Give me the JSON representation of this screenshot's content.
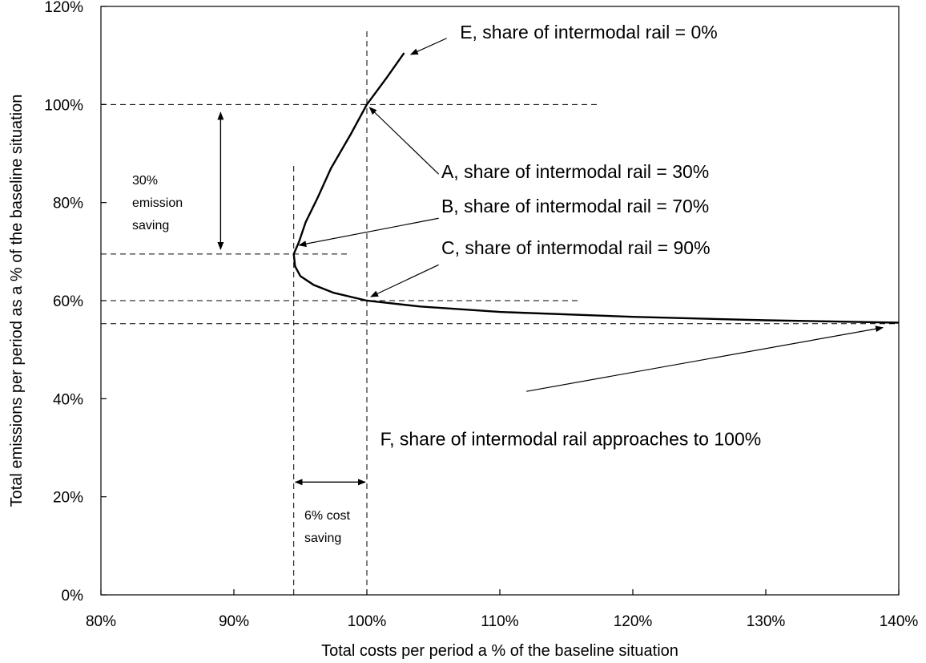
{
  "chart_data": {
    "type": "line",
    "xlabel": "Total costs per period a % of the baseline situation",
    "ylabel": "Total emissions per period as a % of the baseline situation",
    "xlim": [
      80,
      140
    ],
    "ylim": [
      0,
      120
    ],
    "x_ticks": [
      80,
      90,
      100,
      110,
      120,
      130,
      140
    ],
    "x_tick_labels": [
      "80%",
      "90%",
      "100%",
      "110%",
      "120%",
      "130%",
      "140%"
    ],
    "y_ticks": [
      0,
      20,
      40,
      60,
      80,
      100,
      120
    ],
    "y_tick_labels": [
      "0%",
      "20%",
      "40%",
      "60%",
      "80%",
      "100%",
      "120%"
    ],
    "grid": false,
    "series": [
      {
        "x": [
          102.8,
          101.5,
          100.0,
          98.8,
          97.3,
          96.3,
          95.4,
          94.9,
          94.5,
          94.6,
          95.0,
          96.0,
          97.5,
          100.0,
          104.0,
          110.0,
          120.0,
          130.0,
          140.0
        ],
        "y": [
          110.5,
          105.5,
          100.0,
          94.0,
          87.0,
          81.0,
          76.0,
          72.0,
          69.5,
          67.0,
          65.0,
          63.2,
          61.6,
          60.0,
          58.8,
          57.7,
          56.7,
          56.0,
          55.5
        ]
      }
    ],
    "reference_lines": {
      "horizontal": [
        {
          "y": 100,
          "x_from": 80,
          "x_to": 117.3
        },
        {
          "y": 69.5,
          "x_from": 80,
          "x_to": 98.5
        },
        {
          "y": 60,
          "x_from": 80,
          "x_to": 116
        },
        {
          "y": 55.3,
          "x_from": 80,
          "x_to": 140
        }
      ],
      "vertical": [
        {
          "x": 94.5,
          "y_from": 0,
          "y_to": 88
        },
        {
          "x": 100,
          "y_from": 0,
          "y_to": 115
        }
      ]
    },
    "annotations": [
      {
        "id": "E",
        "text": "E, share of intermodal rail = 0%",
        "tx": 107,
        "ty": 113.5,
        "from": [
          106,
          113.5
        ],
        "to": [
          103.3,
          110.2
        ]
      },
      {
        "id": "A",
        "text": "A, share of intermodal rail = 30%",
        "tx": 105.6,
        "ty": 85,
        "from": [
          105.4,
          85.8
        ],
        "to": [
          100.2,
          99.4
        ]
      },
      {
        "id": "B",
        "text": "B, share of intermodal rail = 70%",
        "tx": 105.6,
        "ty": 78,
        "from": [
          105.4,
          76.8
        ],
        "to": [
          94.9,
          71.3
        ]
      },
      {
        "id": "C",
        "text": "C, share of intermodal rail = 90%",
        "tx": 105.6,
        "ty": 69.5,
        "from": [
          105.4,
          67.3
        ],
        "to": [
          100.3,
          60.8
        ]
      },
      {
        "id": "F",
        "text": "F, share of intermodal rail approaches to 100%",
        "tx": 101,
        "ty": 30.5,
        "from": [
          112,
          41.5
        ],
        "to": [
          138.8,
          54.5
        ]
      }
    ],
    "emission_saving": {
      "text_lines": [
        "30%",
        "emission",
        "saving"
      ],
      "x": 89,
      "y_top": 100,
      "y_bottom": 69.5
    },
    "cost_saving": {
      "text_lines": [
        "6% cost",
        "saving"
      ],
      "y": 23,
      "x_left": 94.5,
      "x_right": 100
    }
  }
}
